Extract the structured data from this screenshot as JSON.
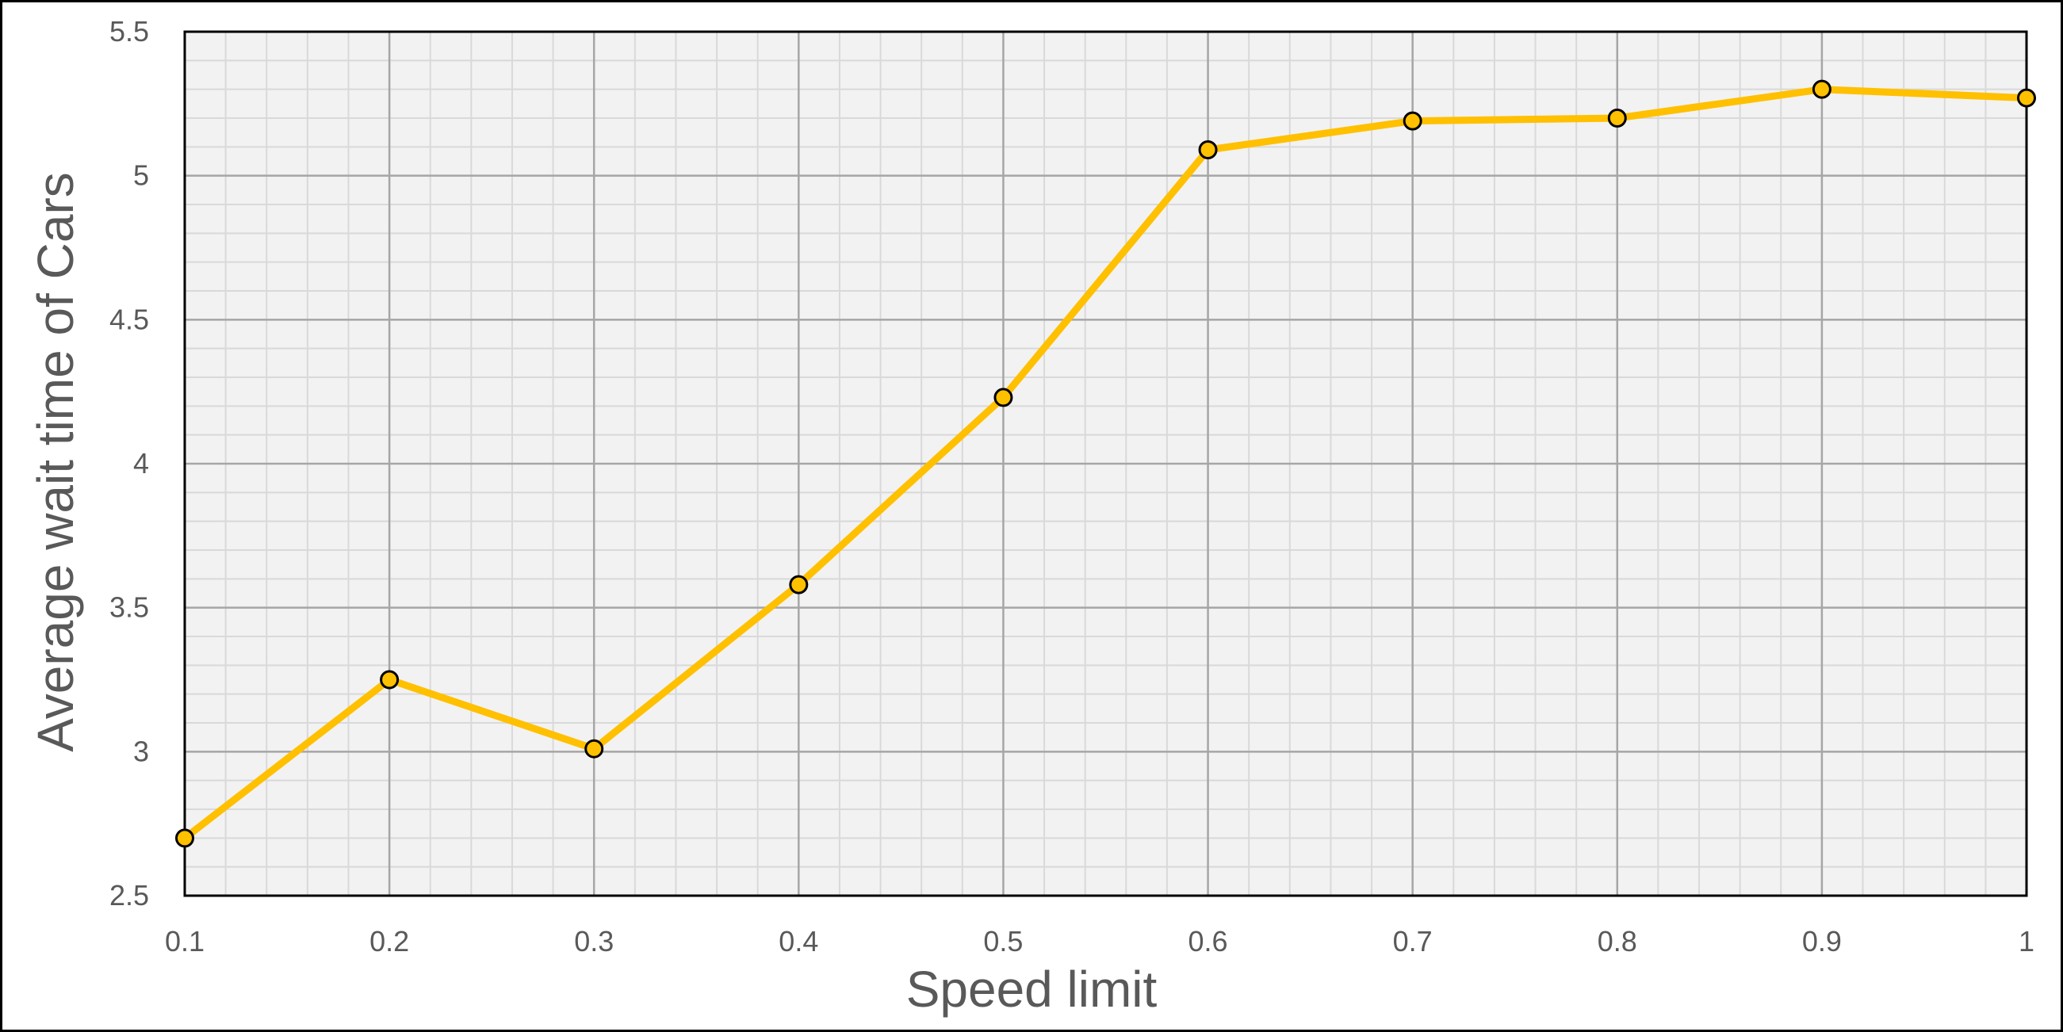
{
  "chart_data": {
    "type": "line",
    "title": "",
    "xlabel": "Speed limit",
    "ylabel": "Average wait time of Cars",
    "xlim": [
      0.1,
      1.0
    ],
    "ylim": [
      2.5,
      5.5
    ],
    "x_ticks": [
      0.1,
      0.2,
      0.3,
      0.4,
      0.5,
      0.6,
      0.7,
      0.8,
      0.9,
      1.0
    ],
    "x_tick_labels": [
      "0.1",
      "0.2",
      "0.3",
      "0.4",
      "0.5",
      "0.6",
      "0.7",
      "0.8",
      "0.9",
      "1"
    ],
    "y_ticks": [
      2.5,
      3.0,
      3.5,
      4.0,
      4.5,
      5.0,
      5.5
    ],
    "y_tick_labels": [
      "2.5",
      "3",
      "3.5",
      "4",
      "4.5",
      "5",
      "5.5"
    ],
    "x_minor_step": 0.02,
    "y_minor_step": 0.1,
    "grid": true,
    "legend": "none",
    "series": [
      {
        "x": [
          0.1,
          0.2,
          0.3,
          0.4,
          0.5,
          0.6,
          0.7,
          0.8,
          0.9,
          1.0
        ],
        "values": [
          2.7,
          3.25,
          3.01,
          3.58,
          4.23,
          5.09,
          5.19,
          5.2,
          5.3,
          5.27
        ],
        "color": "#FFC000",
        "marker_edge_color": "#000000"
      }
    ],
    "colors": {
      "plot_background": "#F2F2F2",
      "major_grid": "#A6A6A6",
      "minor_grid": "#D9D9D9",
      "frame": "#000000",
      "text": "#595959"
    }
  }
}
